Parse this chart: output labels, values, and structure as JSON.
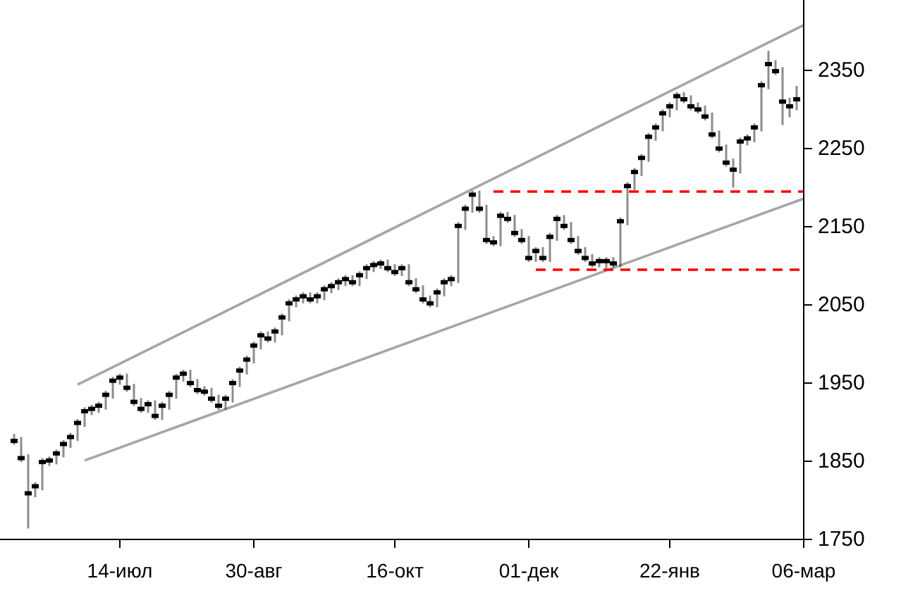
{
  "chart_data": {
    "type": "candlestick",
    "ylim": [
      1750,
      2440
    ],
    "categories": [
      null,
      null,
      null,
      null,
      null,
      null,
      null,
      null,
      null,
      null,
      null,
      null,
      null,
      null,
      null,
      "14-июл",
      null,
      null,
      null,
      null,
      null,
      null,
      null,
      null,
      null,
      null,
      null,
      null,
      null,
      null,
      null,
      null,
      null,
      null,
      "30-авг",
      null,
      null,
      null,
      null,
      null,
      null,
      null,
      null,
      null,
      null,
      null,
      null,
      null,
      null,
      null,
      null,
      null,
      null,
      null,
      "16-окт",
      null,
      null,
      null,
      null,
      null,
      null,
      null,
      null,
      null,
      null,
      null,
      null,
      null,
      null,
      null,
      null,
      null,
      null,
      "01-дек",
      null,
      null,
      null,
      null,
      null,
      null,
      null,
      null,
      null,
      null,
      null,
      null,
      null,
      null,
      null,
      null,
      null,
      null,
      null,
      "22-янв",
      null,
      null,
      null,
      null,
      null,
      null,
      null,
      null,
      null,
      null,
      null,
      null,
      null,
      null,
      null,
      null,
      null,
      null,
      "06-мар"
    ],
    "yticks": [
      1750,
      1850,
      1950,
      2050,
      2150,
      2250,
      2350
    ],
    "series": [
      {
        "type": "line",
        "color": "#a6a6a6",
        "line_style": "solid",
        "values": [
          null,
          null,
          null,
          null,
          null,
          null,
          null,
          null,
          null,
          1948,
          null,
          null,
          null,
          null,
          null,
          null,
          null,
          null,
          null,
          null,
          null,
          null,
          null,
          null,
          null,
          null,
          null,
          null,
          null,
          null,
          null,
          null,
          null,
          null,
          null,
          null,
          null,
          null,
          null,
          null,
          null,
          null,
          null,
          null,
          null,
          null,
          null,
          null,
          null,
          null,
          null,
          null,
          null,
          null,
          null,
          null,
          null,
          null,
          null,
          null,
          null,
          null,
          null,
          null,
          null,
          null,
          null,
          null,
          null,
          null,
          null,
          null,
          null,
          null,
          null,
          null,
          null,
          null,
          null,
          null,
          null,
          null,
          null,
          null,
          null,
          null,
          null,
          null,
          null,
          null,
          null,
          null,
          null,
          null,
          null,
          null,
          null,
          null,
          null,
          null,
          null,
          null,
          null,
          null,
          null,
          null,
          null,
          null,
          null,
          null,
          null,
          null,
          2408
        ]
      },
      {
        "type": "line",
        "color": "#a6a6a6",
        "line_style": "solid",
        "values": [
          null,
          null,
          null,
          null,
          null,
          null,
          null,
          null,
          null,
          null,
          1851,
          null,
          null,
          null,
          null,
          null,
          null,
          null,
          null,
          null,
          null,
          null,
          null,
          null,
          null,
          null,
          null,
          null,
          null,
          null,
          null,
          null,
          null,
          null,
          null,
          null,
          null,
          null,
          null,
          null,
          null,
          null,
          null,
          null,
          null,
          null,
          null,
          null,
          null,
          null,
          null,
          null,
          null,
          null,
          null,
          null,
          null,
          null,
          null,
          null,
          null,
          null,
          null,
          null,
          null,
          null,
          null,
          null,
          null,
          null,
          null,
          null,
          null,
          null,
          null,
          null,
          null,
          null,
          null,
          null,
          null,
          null,
          null,
          null,
          null,
          null,
          null,
          null,
          null,
          null,
          null,
          null,
          null,
          null,
          null,
          null,
          null,
          null,
          null,
          null,
          null,
          null,
          null,
          null,
          null,
          null,
          null,
          null,
          null,
          null,
          null,
          null,
          2186
        ]
      },
      {
        "type": "line",
        "color": "#ff0000",
        "line_style": "dashed",
        "values": [
          null,
          null,
          null,
          null,
          null,
          null,
          null,
          null,
          null,
          null,
          null,
          null,
          null,
          null,
          null,
          null,
          null,
          null,
          null,
          null,
          null,
          null,
          null,
          null,
          null,
          null,
          null,
          null,
          null,
          null,
          null,
          null,
          null,
          null,
          null,
          null,
          null,
          null,
          null,
          null,
          null,
          null,
          null,
          null,
          null,
          null,
          null,
          null,
          null,
          null,
          null,
          null,
          null,
          null,
          null,
          null,
          null,
          null,
          null,
          null,
          null,
          null,
          null,
          null,
          null,
          null,
          null,
          null,
          2195,
          null,
          null,
          null,
          null,
          null,
          null,
          null,
          null,
          null,
          null,
          null,
          null,
          null,
          null,
          null,
          null,
          null,
          null,
          null,
          null,
          null,
          null,
          null,
          null,
          null,
          null,
          null,
          null,
          null,
          null,
          null,
          null,
          null,
          null,
          null,
          null,
          null,
          null,
          null,
          null,
          null,
          null,
          null,
          2195
        ]
      },
      {
        "type": "line",
        "color": "#ff0000",
        "line_style": "dashed",
        "values": [
          null,
          null,
          null,
          null,
          null,
          null,
          null,
          null,
          null,
          null,
          null,
          null,
          null,
          null,
          null,
          null,
          null,
          null,
          null,
          null,
          null,
          null,
          null,
          null,
          null,
          null,
          null,
          null,
          null,
          null,
          null,
          null,
          null,
          null,
          null,
          null,
          null,
          null,
          null,
          null,
          null,
          null,
          null,
          null,
          null,
          null,
          null,
          null,
          null,
          null,
          null,
          null,
          null,
          null,
          null,
          null,
          null,
          null,
          null,
          null,
          null,
          null,
          null,
          null,
          null,
          null,
          null,
          null,
          null,
          null,
          null,
          null,
          null,
          null,
          2095,
          null,
          null,
          null,
          null,
          null,
          null,
          null,
          null,
          null,
          null,
          null,
          null,
          null,
          null,
          null,
          null,
          null,
          null,
          null,
          null,
          null,
          null,
          null,
          null,
          null,
          null,
          null,
          null,
          null,
          null,
          null,
          null,
          null,
          null,
          null,
          null,
          null,
          2095
        ]
      },
      {
        "color": "#000000",
        "ohlc": [
          [
            1876,
            1885,
            1871,
            1876
          ],
          [
            1854,
            1881,
            1849,
            1854
          ],
          [
            1809,
            1859,
            1764,
            1809
          ],
          [
            1818,
            1823,
            1804,
            1818
          ],
          [
            1849,
            1854,
            1813,
            1849
          ],
          [
            1851,
            1856,
            1844,
            1851
          ],
          [
            1860,
            1865,
            1846,
            1860
          ],
          [
            1872,
            1877,
            1855,
            1872
          ],
          [
            1881,
            1886,
            1867,
            1881
          ],
          [
            1899,
            1904,
            1876,
            1899
          ],
          [
            1914,
            1919,
            1894,
            1914
          ],
          [
            1917,
            1922,
            1909,
            1917
          ],
          [
            1921,
            1926,
            1912,
            1921
          ],
          [
            1935,
            1940,
            1916,
            1935
          ],
          [
            1953,
            1958,
            1930,
            1953
          ],
          [
            1957,
            1962,
            1948,
            1957
          ],
          [
            1944,
            1962,
            1939,
            1944
          ],
          [
            1926,
            1949,
            1921,
            1926
          ],
          [
            1917,
            1931,
            1912,
            1917
          ],
          [
            1923,
            1928,
            1912,
            1923
          ],
          [
            1908,
            1928,
            1903,
            1908
          ],
          [
            1921,
            1926,
            1903,
            1921
          ],
          [
            1935,
            1940,
            1916,
            1935
          ],
          [
            1957,
            1962,
            1930,
            1957
          ],
          [
            1962,
            1967,
            1952,
            1962
          ],
          [
            1950,
            1967,
            1945,
            1950
          ],
          [
            1941,
            1955,
            1936,
            1941
          ],
          [
            1939,
            1946,
            1934,
            1939
          ],
          [
            1930,
            1944,
            1925,
            1930
          ],
          [
            1921,
            1935,
            1916,
            1921
          ],
          [
            1930,
            1935,
            1916,
            1930
          ],
          [
            1950,
            1955,
            1925,
            1950
          ],
          [
            1966,
            1971,
            1945,
            1966
          ],
          [
            1980,
            1985,
            1961,
            1980
          ],
          [
            1998,
            2003,
            1975,
            1998
          ],
          [
            2011,
            2016,
            1993,
            2011
          ],
          [
            2007,
            2016,
            2002,
            2007
          ],
          [
            2016,
            2021,
            2002,
            2016
          ],
          [
            2034,
            2039,
            2011,
            2034
          ],
          [
            2052,
            2057,
            2029,
            2052
          ],
          [
            2057,
            2062,
            2047,
            2057
          ],
          [
            2061,
            2066,
            2052,
            2061
          ],
          [
            2057,
            2066,
            2052,
            2057
          ],
          [
            2061,
            2066,
            2052,
            2061
          ],
          [
            2070,
            2075,
            2056,
            2070
          ],
          [
            2074,
            2079,
            2065,
            2074
          ],
          [
            2079,
            2084,
            2069,
            2079
          ],
          [
            2083,
            2088,
            2074,
            2083
          ],
          [
            2079,
            2088,
            2074,
            2079
          ],
          [
            2088,
            2093,
            2074,
            2088
          ],
          [
            2097,
            2102,
            2083,
            2097
          ],
          [
            2101,
            2106,
            2092,
            2101
          ],
          [
            2103,
            2108,
            2096,
            2103
          ],
          [
            2097,
            2108,
            2092,
            2097
          ],
          [
            2092,
            2102,
            2087,
            2092
          ],
          [
            2097,
            2102,
            2087,
            2097
          ],
          [
            2079,
            2102,
            2074,
            2079
          ],
          [
            2070,
            2084,
            2065,
            2070
          ],
          [
            2057,
            2075,
            2052,
            2057
          ],
          [
            2052,
            2062,
            2047,
            2052
          ],
          [
            2066,
            2071,
            2047,
            2066
          ],
          [
            2079,
            2084,
            2061,
            2079
          ],
          [
            2083,
            2088,
            2074,
            2083
          ],
          [
            2151,
            2156,
            2078,
            2151
          ],
          [
            2173,
            2178,
            2146,
            2173
          ],
          [
            2191,
            2196,
            2168,
            2191
          ],
          [
            2173,
            2196,
            2168,
            2173
          ],
          [
            2133,
            2178,
            2128,
            2133
          ],
          [
            2130,
            2138,
            2125,
            2130
          ],
          [
            2164,
            2169,
            2125,
            2164
          ],
          [
            2160,
            2169,
            2155,
            2160
          ],
          [
            2142,
            2165,
            2137,
            2142
          ],
          [
            2133,
            2147,
            2128,
            2133
          ],
          [
            2110,
            2138,
            2105,
            2110
          ],
          [
            2119,
            2124,
            2105,
            2119
          ],
          [
            2110,
            2124,
            2105,
            2110
          ],
          [
            2137,
            2142,
            2105,
            2137
          ],
          [
            2160,
            2165,
            2132,
            2160
          ],
          [
            2151,
            2165,
            2146,
            2151
          ],
          [
            2133,
            2156,
            2128,
            2133
          ],
          [
            2119,
            2138,
            2114,
            2119
          ],
          [
            2110,
            2124,
            2105,
            2110
          ],
          [
            2103,
            2115,
            2098,
            2103
          ],
          [
            2106,
            2111,
            2098,
            2106
          ],
          [
            2106,
            2111,
            2097,
            2106
          ],
          [
            2103,
            2111,
            2098,
            2103
          ],
          [
            2157,
            2162,
            2098,
            2157
          ],
          [
            2202,
            2207,
            2152,
            2202
          ],
          [
            2220,
            2225,
            2197,
            2220
          ],
          [
            2238,
            2243,
            2215,
            2238
          ],
          [
            2265,
            2270,
            2233,
            2265
          ],
          [
            2277,
            2282,
            2260,
            2277
          ],
          [
            2295,
            2300,
            2272,
            2295
          ],
          [
            2304,
            2309,
            2290,
            2304
          ],
          [
            2317,
            2322,
            2299,
            2317
          ],
          [
            2313,
            2322,
            2308,
            2313
          ],
          [
            2304,
            2318,
            2299,
            2304
          ],
          [
            2300,
            2309,
            2295,
            2300
          ],
          [
            2291,
            2305,
            2286,
            2291
          ],
          [
            2268,
            2296,
            2263,
            2268
          ],
          [
            2250,
            2273,
            2245,
            2250
          ],
          [
            2232,
            2255,
            2227,
            2232
          ],
          [
            2223,
            2237,
            2200,
            2223
          ],
          [
            2259,
            2264,
            2218,
            2259
          ],
          [
            2263,
            2268,
            2254,
            2263
          ],
          [
            2277,
            2282,
            2258,
            2277
          ],
          [
            2331,
            2336,
            2272,
            2331
          ],
          [
            2358,
            2375,
            2326,
            2358
          ],
          [
            2349,
            2363,
            2344,
            2349
          ],
          [
            2310,
            2354,
            2280,
            2310
          ],
          [
            2304,
            2315,
            2290,
            2304
          ],
          [
            2313,
            2330,
            2299,
            2313
          ],
          null
        ]
      }
    ]
  }
}
